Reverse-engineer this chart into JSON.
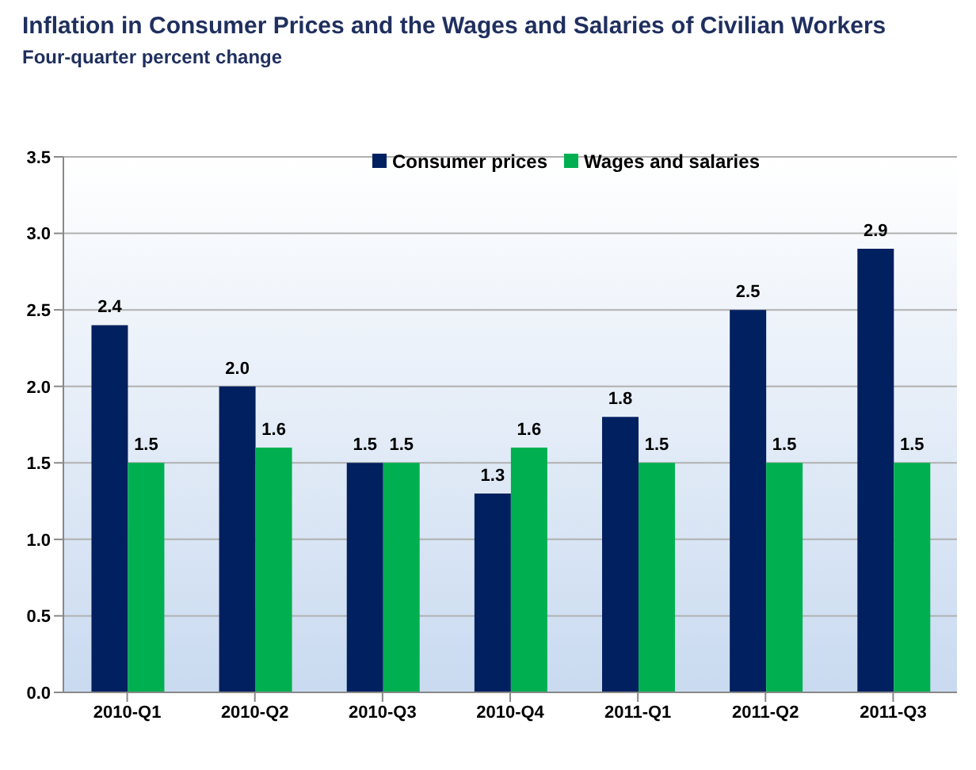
{
  "chart_data": {
    "type": "bar",
    "title": "Inflation in Consumer Prices and the Wages and Salaries of Civilian Workers",
    "subtitle": "Four-quarter percent change",
    "categories": [
      "2010-Q1",
      "2010-Q2",
      "2010-Q3",
      "2010-Q4",
      "2011-Q1",
      "2011-Q2",
      "2011-Q3"
    ],
    "series": [
      {
        "name": "Consumer prices",
        "color": "#002060",
        "values": [
          2.4,
          2.0,
          1.5,
          1.3,
          1.8,
          2.5,
          2.9
        ],
        "value_labels": [
          "2.4",
          "2.0",
          "1.5",
          "1.3",
          "1.8",
          "2.5",
          "2.9"
        ]
      },
      {
        "name": "Wages and salaries",
        "color": "#00b050",
        "values": [
          1.5,
          1.6,
          1.5,
          1.6,
          1.5,
          1.5,
          1.5
        ],
        "value_labels": [
          "1.5",
          "1.6",
          "1.5",
          "1.6",
          "1.5",
          "1.5",
          "1.5"
        ]
      }
    ],
    "ylim": [
      0,
      3.5
    ],
    "yticks": [
      {
        "value": 0,
        "label": "0.0"
      },
      {
        "value": 0.5,
        "label": "0.5"
      },
      {
        "value": 1,
        "label": "1.0"
      },
      {
        "value": 1.5,
        "label": "1.5"
      },
      {
        "value": 2,
        "label": "2.0"
      },
      {
        "value": 2.5,
        "label": "2.5"
      },
      {
        "value": 3,
        "label": "3.0"
      },
      {
        "value": 3.5,
        "label": "3.5"
      }
    ],
    "grid": "y",
    "legend": "top"
  }
}
